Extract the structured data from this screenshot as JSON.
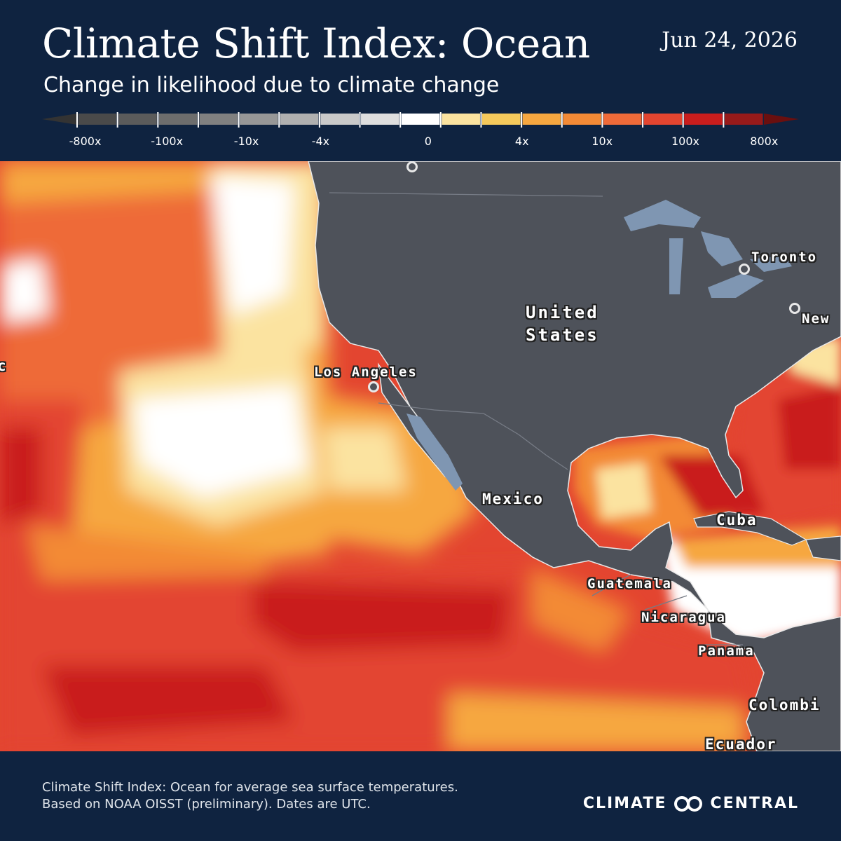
{
  "header": {
    "title": "Climate Shift Index: Ocean",
    "date": "Jun 24, 2026",
    "subtitle": "Change in likelihood due to climate change"
  },
  "legend": {
    "tick_labels": [
      "-800x",
      "-100x",
      "-10x",
      "-4x",
      "0",
      "4x",
      "10x",
      "100x",
      "800x"
    ],
    "colors": [
      "#4a4a4a",
      "#5b5b5b",
      "#6d6d6d",
      "#808080",
      "#979797",
      "#b0b0b0",
      "#c9c9c9",
      "#dedede",
      "#ffffff",
      "#fbe3a0",
      "#f5c95c",
      "#f6a740",
      "#f38a36",
      "#ee6a39",
      "#e34530",
      "#c91d1d",
      "#971a1a"
    ],
    "arrow_left_color": "#333333",
    "arrow_right_color": "#6a0f0f"
  },
  "map": {
    "labels": {
      "us": "United\nStates",
      "mexico": "Mexico",
      "los_angeles": "Los Angeles",
      "toronto": "Toronto",
      "new_york": "New",
      "cuba": "Cuba",
      "guatemala": "Guatemala",
      "nicaragua": "Nicaragua",
      "panama": "Panama",
      "colombia": "Colombi",
      "ecuador": "Ecuador",
      "pacific_edge": "c"
    },
    "land_color": "#4e525a",
    "water_color": "#7f96b2"
  },
  "footer": {
    "note_line1": "Climate Shift Index: Ocean for average sea surface temperatures.",
    "note_line2": "Based on NOAA OISST (preliminary). Dates are UTC.",
    "brand_left": "CLIMATE",
    "brand_right": "CENTRAL"
  }
}
